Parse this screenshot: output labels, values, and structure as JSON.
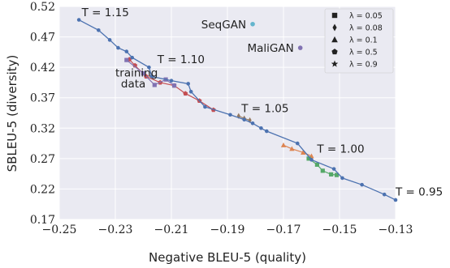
{
  "chart_data": {
    "type": "scatter",
    "xlabel": "Negative BLEU-5 (quality)",
    "ylabel": "SBLEU-5 (diversity)",
    "xlim": [
      -0.25,
      -0.13
    ],
    "ylim": [
      0.17,
      0.52
    ],
    "xticks": [
      "−0.25",
      "−0.23",
      "−0.21",
      "−0.19",
      "−0.17",
      "−0.15",
      "−0.13"
    ],
    "yticks": [
      "0.17",
      "0.22",
      "0.27",
      "0.32",
      "0.37",
      "0.42",
      "0.47",
      "0.52"
    ],
    "grid": true,
    "legend_position": "top-right",
    "legend": [
      {
        "label": "λ = 0.05",
        "marker": "square"
      },
      {
        "label": "λ = 0.08",
        "marker": "diamond"
      },
      {
        "label": "λ = 0.1",
        "marker": "triangle"
      },
      {
        "label": "λ = 0.5",
        "marker": "pentagon"
      },
      {
        "label": "λ = 0.9",
        "marker": "star"
      }
    ],
    "temperature_curve": {
      "color": "#4c72b0",
      "points": [
        [
          -0.243,
          0.498
        ],
        [
          -0.236,
          0.481
        ],
        [
          -0.232,
          0.465
        ],
        [
          -0.229,
          0.452
        ],
        [
          -0.226,
          0.446
        ],
        [
          -0.224,
          0.436
        ],
        [
          -0.218,
          0.42
        ],
        [
          -0.217,
          0.405
        ],
        [
          -0.21,
          0.398
        ],
        [
          -0.204,
          0.393
        ],
        [
          -0.203,
          0.38
        ],
        [
          -0.198,
          0.355
        ],
        [
          -0.189,
          0.342
        ],
        [
          -0.184,
          0.334
        ],
        [
          -0.181,
          0.328
        ],
        [
          -0.178,
          0.32
        ],
        [
          -0.176,
          0.315
        ],
        [
          -0.165,
          0.295
        ],
        [
          -0.16,
          0.268
        ],
        [
          -0.152,
          0.253
        ],
        [
          -0.149,
          0.238
        ],
        [
          -0.142,
          0.227
        ],
        [
          -0.134,
          0.211
        ],
        [
          -0.13,
          0.202
        ]
      ]
    },
    "lambda_curves": [
      {
        "color": "#c44e52",
        "marker": "pentagon",
        "points": [
          [
            -0.225,
            0.433
          ],
          [
            -0.223,
            0.423
          ],
          [
            -0.219,
            0.405
          ],
          [
            -0.214,
            0.395
          ],
          [
            -0.209,
            0.39
          ],
          [
            -0.205,
            0.377
          ],
          [
            -0.2,
            0.365
          ],
          [
            -0.195,
            0.35
          ]
        ]
      },
      {
        "color": "#8172b2",
        "marker": "square",
        "points": [
          [
            -0.226,
            0.432
          ],
          [
            -0.22,
            0.41
          ],
          [
            -0.216,
            0.391
          ],
          [
            -0.212,
            0.4
          ],
          [
            -0.209,
            0.39
          ]
        ]
      },
      {
        "color": "#937860",
        "marker": "diamond",
        "points": [
          [
            -0.186,
            0.34
          ],
          [
            -0.184,
            0.336
          ],
          [
            -0.182,
            0.333
          ]
        ]
      },
      {
        "color": "#dd8452",
        "marker": "triangle",
        "points": [
          [
            -0.17,
            0.292
          ],
          [
            -0.167,
            0.286
          ],
          [
            -0.163,
            0.28
          ],
          [
            -0.16,
            0.274
          ]
        ]
      },
      {
        "color": "#55a868",
        "marker": "square",
        "points": [
          [
            -0.161,
            0.27
          ],
          [
            -0.158,
            0.26
          ],
          [
            -0.156,
            0.25
          ],
          [
            -0.153,
            0.244
          ],
          [
            -0.151,
            0.243
          ]
        ]
      }
    ],
    "reference_points": [
      {
        "label": "SeqGAN",
        "x": -0.181,
        "y": 0.491,
        "color": "#64b5cd"
      },
      {
        "label": "MaliGAN",
        "x": -0.164,
        "y": 0.452,
        "color": "#8172b2"
      }
    ],
    "annotations": [
      {
        "text": "T = 1.15",
        "x": -0.242,
        "y": 0.504
      },
      {
        "text": "T = 1.10",
        "x": -0.215,
        "y": 0.427
      },
      {
        "text": "training",
        "x": -0.23,
        "y": 0.405
      },
      {
        "text": "data",
        "x": -0.228,
        "y": 0.387
      },
      {
        "text": "T = 1.05",
        "x": -0.185,
        "y": 0.346
      },
      {
        "text": "T = 1.00",
        "x": -0.158,
        "y": 0.28
      },
      {
        "text": "T = 0.95",
        "x": -0.13,
        "y": 0.209
      }
    ]
  }
}
